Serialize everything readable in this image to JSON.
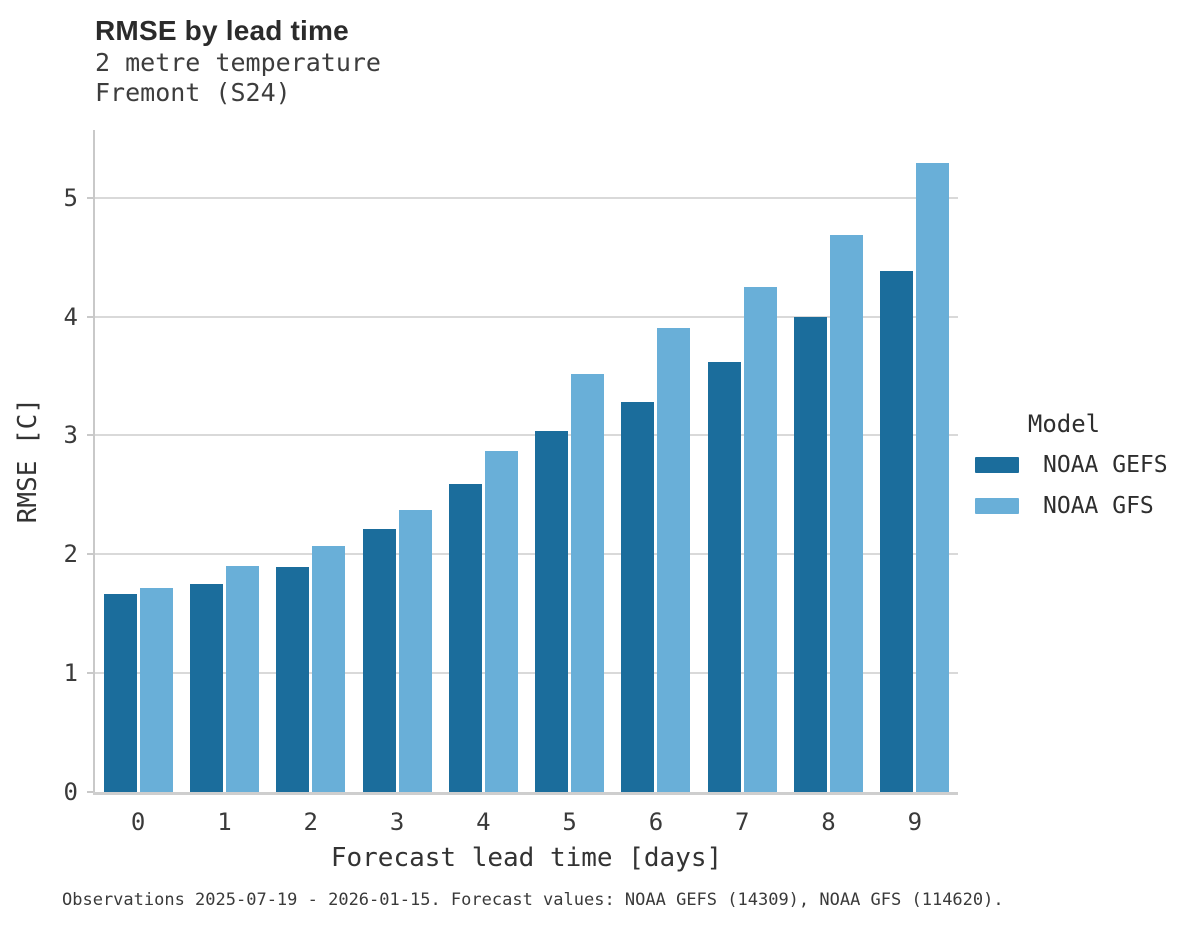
{
  "chart_data": {
    "type": "bar",
    "title": "RMSE by lead time",
    "subtitle_lines": [
      "2 metre temperature",
      "Fremont (S24)"
    ],
    "categories": [
      "0",
      "1",
      "2",
      "3",
      "4",
      "5",
      "6",
      "7",
      "8",
      "9"
    ],
    "series": [
      {
        "name": "NOAA GEFS",
        "color": "#1b6d9c",
        "values": [
          1.67,
          1.75,
          1.89,
          2.21,
          2.59,
          3.04,
          3.28,
          3.62,
          4.0,
          4.38
        ]
      },
      {
        "name": "NOAA GFS",
        "color": "#69afd8",
        "values": [
          1.72,
          1.9,
          2.07,
          2.37,
          2.87,
          3.52,
          3.9,
          4.25,
          4.69,
          5.29
        ]
      }
    ],
    "xlabel": "Forecast lead time [days]",
    "ylabel": "RMSE [C]",
    "ylim": [
      0,
      5.57
    ],
    "yticks": [
      0,
      1,
      2,
      3,
      4,
      5
    ],
    "grid": "horizontal",
    "legend_title": "Model",
    "legend_position": "right-center",
    "colors": {
      "grid": "#d9d9d9",
      "spine": "#c9c9c9",
      "tick_text": "#3a3a3a",
      "title_text": "#2b2b2b"
    }
  },
  "caption": "Observations 2025-07-19 - 2026-01-15. Forecast values: NOAA GEFS (14309), NOAA GFS (114620)."
}
